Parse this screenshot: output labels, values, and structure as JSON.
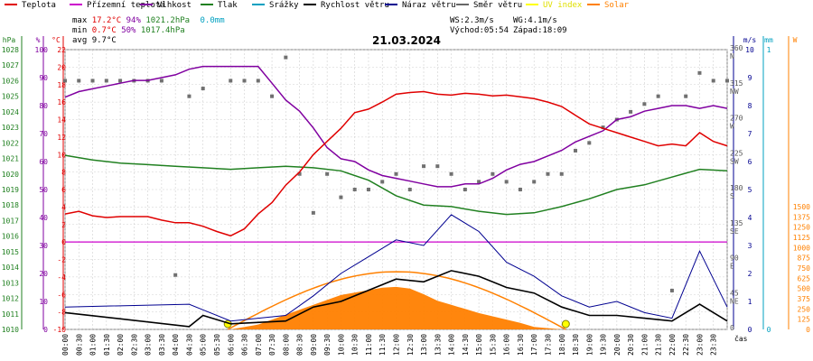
{
  "chart_data": {
    "type": "line",
    "title": "21.03.2024",
    "legend": [
      {
        "name": "Teplota",
        "color": "#e00000"
      },
      {
        "name": "Přízemní teplota",
        "color": "#cc00cc"
      },
      {
        "name": "Vlhkost",
        "color": "#8000a0"
      },
      {
        "name": "Tlak",
        "color": "#208020"
      },
      {
        "name": "Srážky",
        "color": "#00a0c0"
      },
      {
        "name": "Rychlost větru",
        "color": "#000000"
      },
      {
        "name": "Náraz větru",
        "color": "#000090"
      },
      {
        "name": "Směr větru",
        "color": "#666666"
      },
      {
        "name": "UV index",
        "color": "#ffff00"
      },
      {
        "name": "Solar",
        "color": "#ff8000"
      }
    ],
    "stats": {
      "max": {
        "label": "max",
        "temp": "17.2°C",
        "hum": "94%",
        "press": "1021.2hPa",
        "rain": "0.0mm"
      },
      "min": {
        "label": "min",
        "temp": "0.7°C",
        "hum": "50%",
        "press": "1017.4hPa"
      },
      "avg": {
        "label": "avg",
        "temp": "9.7°C"
      }
    },
    "wind_info": {
      "ws": "WS:2.3m/s",
      "wg": "WG:4.1m/s",
      "sunrise": "Východ:05:54",
      "sunset": "Západ:18:09"
    },
    "axes": {
      "hpa": {
        "label": "hPa",
        "ticks": [
          "1028",
          "1027",
          "1026",
          "1025",
          "1024",
          "1023",
          "1022",
          "1021",
          "1020",
          "1019",
          "1018",
          "1017",
          "1016",
          "1015",
          "1014",
          "1013",
          "1012",
          "1011",
          "1010"
        ]
      },
      "pct": {
        "label": "%",
        "ticks": [
          "100",
          "90",
          "80",
          "70",
          "60",
          "50",
          "40",
          "30",
          "20",
          "10",
          "0"
        ]
      },
      "degc": {
        "label": "°C",
        "ticks": [
          "22",
          "20",
          "18",
          "16",
          "14",
          "12",
          "10",
          "8",
          "6",
          "4",
          "2",
          "0",
          "-2",
          "-4",
          "-6",
          "-8",
          "-10"
        ]
      },
      "ms": {
        "label": "m/s",
        "ticks": [
          "10",
          "9",
          "8",
          "7",
          "6",
          "5",
          "4",
          "3",
          "2",
          "1",
          "0"
        ]
      },
      "dir": {
        "ticks": [
          "360",
          "N",
          "315",
          "NW",
          "270",
          "W",
          "225",
          "SW",
          "180",
          "S",
          "135",
          "SE",
          "90",
          "E",
          "45",
          "NE",
          "0"
        ]
      },
      "mm": {
        "label": "mm",
        "ticks": [
          "1",
          "0"
        ]
      },
      "solar": {
        "label": "W",
        "ticks": [
          "1500",
          "1375",
          "1250",
          "1125",
          "1000",
          "875",
          "750",
          "625",
          "500",
          "375",
          "250",
          "125",
          "0"
        ]
      },
      "xlabel": "čas",
      "time_ticks": [
        "00:00",
        "00:30",
        "01:00",
        "01:30",
        "02:00",
        "02:30",
        "03:00",
        "03:30",
        "04:00",
        "04:30",
        "05:00",
        "05:30",
        "06:00",
        "06:30",
        "07:00",
        "07:30",
        "08:00",
        "08:30",
        "09:00",
        "09:30",
        "10:00",
        "10:30",
        "11:00",
        "11:30",
        "12:00",
        "12:30",
        "13:00",
        "13:30",
        "14:00",
        "14:30",
        "15:00",
        "15:30",
        "16:00",
        "16:30",
        "17:00",
        "17:30",
        "18:00",
        "18:30",
        "19:00",
        "19:30",
        "20:00",
        "20:30",
        "21:00",
        "21:30",
        "22:00",
        "22:30",
        "23:00",
        "23:30"
      ]
    },
    "ranges": {
      "temp": [
        -10,
        22
      ],
      "hum": [
        0,
        100
      ],
      "press": [
        1010,
        1028
      ],
      "wind": [
        0,
        10
      ],
      "dir": [
        0,
        360
      ],
      "solar": [
        0,
        1500
      ]
    },
    "series": [
      {
        "name": "Teplota",
        "x": [
          0,
          0.5,
          1,
          1.5,
          2,
          2.5,
          3,
          3.5,
          4,
          4.5,
          5,
          5.5,
          6,
          6.5,
          7,
          7.5,
          8,
          8.5,
          9,
          9.5,
          10,
          10.5,
          11,
          11.5,
          12,
          12.5,
          13,
          13.5,
          14,
          14.5,
          15,
          15.5,
          16,
          16.5,
          17,
          17.5,
          18,
          18.5,
          19,
          19.5,
          20,
          20.5,
          21,
          21.5,
          22,
          22.5,
          23,
          23.5,
          24
        ],
        "values": [
          3.2,
          3.5,
          3.0,
          2.8,
          2.9,
          2.9,
          2.9,
          2.5,
          2.2,
          2.2,
          1.8,
          1.2,
          0.7,
          1.5,
          3.2,
          4.5,
          6.5,
          8.0,
          10.0,
          11.5,
          13.0,
          14.8,
          15.2,
          16.0,
          16.9,
          17.1,
          17.2,
          16.9,
          16.8,
          17.0,
          16.9,
          16.7,
          16.8,
          16.6,
          16.4,
          16.0,
          15.5,
          14.5,
          13.5,
          13.0,
          12.5,
          12.0,
          11.5,
          11.0,
          11.2,
          11.0,
          12.5,
          11.5,
          11.0
        ]
      },
      {
        "name": "Vlhkost",
        "x": [
          0,
          0.5,
          1,
          1.5,
          2,
          2.5,
          3,
          3.5,
          4,
          4.5,
          5,
          5.5,
          6,
          6.5,
          7,
          7.5,
          8,
          8.5,
          9,
          9.5,
          10,
          10.5,
          11,
          11.5,
          12,
          12.5,
          13,
          13.5,
          14,
          14.5,
          15,
          15.5,
          16,
          16.5,
          17,
          17.5,
          18,
          18.5,
          19,
          19.5,
          20,
          20.5,
          21,
          21.5,
          22,
          22.5,
          23,
          23.5,
          24
        ],
        "values": [
          83,
          85,
          86,
          87,
          88,
          89,
          89,
          90,
          91,
          93,
          94,
          94,
          94,
          94,
          94,
          88,
          82,
          78,
          72,
          65,
          61,
          60,
          57,
          55,
          54,
          53,
          52,
          51,
          51,
          52,
          52,
          54,
          57,
          59,
          60,
          62,
          64,
          67,
          69,
          71,
          75,
          76,
          78,
          79,
          80,
          80,
          79,
          80,
          79
        ]
      },
      {
        "name": "Tlak",
        "x": [
          0,
          1,
          2,
          3,
          4,
          5,
          6,
          7,
          8,
          9,
          10,
          11,
          12,
          13,
          14,
          15,
          16,
          17,
          18,
          19,
          20,
          21,
          22,
          23,
          24
        ],
        "values": [
          1021.2,
          1020.9,
          1020.7,
          1020.6,
          1020.5,
          1020.4,
          1020.3,
          1020.4,
          1020.5,
          1020.4,
          1020.2,
          1019.6,
          1018.6,
          1018.0,
          1017.9,
          1017.6,
          1017.4,
          1017.5,
          1017.9,
          1018.4,
          1019.0,
          1019.3,
          1019.8,
          1020.3,
          1020.2
        ]
      },
      {
        "name": "Rychlost větru",
        "x": [
          0,
          4.5,
          5,
          6,
          8,
          9,
          10,
          11,
          12,
          13,
          14,
          15,
          16,
          17,
          18,
          19,
          20,
          21,
          22,
          23,
          24
        ],
        "values": [
          0.6,
          0.1,
          0.5,
          0.2,
          0.3,
          0.8,
          1.0,
          1.4,
          1.8,
          1.7,
          2.1,
          1.9,
          1.5,
          1.3,
          0.8,
          0.5,
          0.5,
          0.4,
          0.3,
          0.9,
          0.3
        ]
      },
      {
        "name": "Náraz větru",
        "x": [
          0,
          4.5,
          5,
          6,
          8,
          9,
          10,
          11,
          12,
          13,
          14,
          15,
          16,
          17,
          18,
          19,
          20,
          21,
          22,
          23,
          24
        ],
        "values": [
          0.8,
          0.9,
          0.7,
          0.3,
          0.5,
          1.2,
          2.0,
          2.6,
          3.2,
          3.0,
          4.1,
          3.5,
          2.4,
          1.9,
          1.2,
          0.8,
          1.0,
          0.6,
          0.4,
          2.8,
          0.8
        ]
      },
      {
        "name": "Solar",
        "x": [
          6,
          7,
          8,
          9,
          10,
          11,
          11.5,
          12,
          12.5,
          13,
          13.5,
          14,
          14.5,
          15,
          15.5,
          16,
          16.5,
          17,
          18,
          18.2
        ],
        "values": [
          0,
          60,
          180,
          300,
          420,
          480,
          510,
          520,
          500,
          430,
          350,
          300,
          250,
          200,
          160,
          120,
          80,
          30,
          0,
          0
        ]
      },
      {
        "name": "Směr větru",
        "x": [
          0,
          0.5,
          1,
          1.5,
          2,
          2.5,
          3,
          3.5,
          4,
          4.5,
          5,
          6,
          6.5,
          7,
          7.5,
          8,
          8.5,
          9,
          9.5,
          10,
          10.5,
          11,
          11.5,
          12,
          12.5,
          13,
          13.5,
          14,
          14.5,
          15,
          15.5,
          16,
          16.5,
          17,
          17.5,
          18,
          18.5,
          19,
          19.5,
          20,
          20.5,
          21,
          21.5,
          22,
          22.5,
          23,
          23.5,
          24
        ],
        "values": [
          320,
          320,
          320,
          320,
          320,
          320,
          320,
          320,
          70,
          300,
          310,
          320,
          320,
          320,
          300,
          350,
          200,
          150,
          200,
          170,
          180,
          180,
          190,
          200,
          180,
          210,
          210,
          200,
          180,
          190,
          200,
          190,
          180,
          190,
          200,
          200,
          230,
          240,
          260,
          270,
          280,
          290,
          300,
          50,
          300,
          330,
          320,
          320
        ]
      }
    ],
    "sun_times": {
      "sunrise": 5.9,
      "sunset": 18.15
    }
  }
}
